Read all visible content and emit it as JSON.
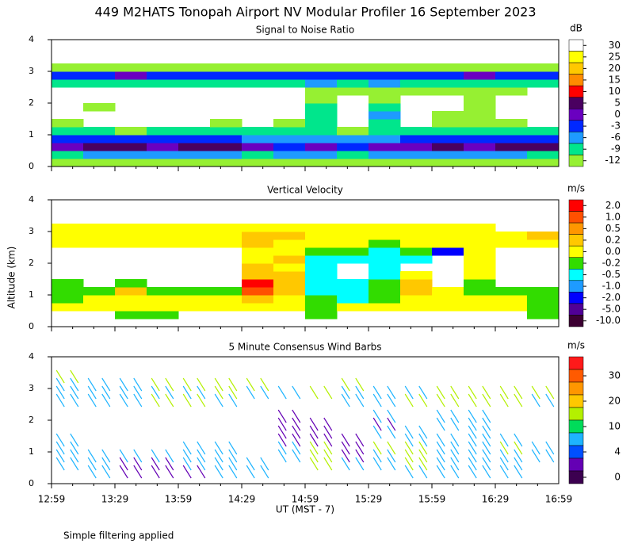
{
  "title": "449 M2HATS Tonopah Airport NV Modular Profiler 16 September 2023",
  "ylabel": "Altitude (km)",
  "xlabel": "UT  (MST - 7)",
  "footnote": "Simple filtering applied",
  "chart_data": [
    {
      "type": "heatmap",
      "title": "Signal to Noise Ratio",
      "unit": "dB",
      "xticks": [
        "12:59",
        "13:29",
        "13:59",
        "14:29",
        "14:59",
        "15:29",
        "15:59",
        "16:29",
        "16:59"
      ],
      "ylim": [
        0,
        4
      ],
      "yticks": [
        0,
        1,
        2,
        3,
        4
      ],
      "levels": [
        30,
        25,
        20,
        15,
        10,
        5,
        0,
        -3,
        -6,
        -9,
        -12
      ],
      "colors": [
        "#ffffff",
        "#ffff00",
        "#ffc800",
        "#ff8c00",
        "#ff0000",
        "#4a0060",
        "#6a00c0",
        "#0028ff",
        "#1e9bff",
        "#00e68c",
        "#96f032"
      ],
      "z": [
        [
          -12,
          -12,
          -12,
          -12,
          -12,
          -12,
          -12,
          -12,
          -12,
          -12,
          -12,
          -12,
          -12,
          -12,
          -12,
          -12
        ],
        [
          -9,
          -6,
          -6,
          -6,
          -6,
          -6,
          -9,
          -6,
          -6,
          -9,
          -6,
          -6,
          -6,
          -6,
          -6,
          -9
        ],
        [
          0,
          5,
          5,
          3,
          5,
          5,
          0,
          -3,
          0,
          -3,
          0,
          3,
          5,
          3,
          5,
          5
        ],
        [
          -3,
          -3,
          -3,
          -3,
          -3,
          -3,
          -6,
          -6,
          -6,
          -6,
          -6,
          -3,
          -3,
          -3,
          -3,
          -3
        ],
        [
          -9,
          -9,
          -12,
          -9,
          -9,
          -9,
          -9,
          -9,
          -9,
          -12,
          -9,
          -9,
          -9,
          -9,
          -9,
          -9
        ],
        [
          -12,
          null,
          null,
          null,
          null,
          -12,
          null,
          -12,
          -9,
          null,
          -9,
          null,
          -12,
          -12,
          -12,
          null
        ],
        [
          null,
          null,
          null,
          null,
          null,
          null,
          null,
          null,
          -9,
          null,
          -6,
          null,
          -12,
          -12,
          null,
          null
        ],
        [
          null,
          -12,
          null,
          null,
          null,
          null,
          null,
          null,
          -9,
          null,
          -9,
          null,
          null,
          -12,
          null,
          null
        ],
        [
          null,
          null,
          null,
          null,
          null,
          null,
          null,
          null,
          -12,
          null,
          -12,
          null,
          null,
          -12,
          null,
          null
        ],
        [
          null,
          null,
          null,
          null,
          null,
          null,
          null,
          null,
          -12,
          -12,
          -12,
          -12,
          -12,
          -12,
          -12,
          null
        ],
        [
          -9,
          -9,
          -9,
          -9,
          -9,
          -9,
          -9,
          -9,
          -6,
          -9,
          -6,
          -9,
          -9,
          -9,
          -9,
          -9
        ],
        [
          -3,
          -3,
          0,
          -3,
          -3,
          -3,
          -3,
          -3,
          -3,
          -3,
          -3,
          -3,
          -3,
          0,
          -3,
          -3
        ],
        [
          -12,
          -12,
          -12,
          -12,
          -12,
          -12,
          -12,
          -12,
          -12,
          -12,
          -12,
          -12,
          -12,
          -12,
          -12,
          -12
        ],
        [
          null,
          null,
          null,
          null,
          null,
          null,
          null,
          null,
          null,
          null,
          null,
          null,
          null,
          null,
          null,
          null
        ],
        [
          null,
          null,
          null,
          null,
          null,
          null,
          null,
          null,
          null,
          null,
          null,
          null,
          null,
          null,
          null,
          null
        ],
        [
          null,
          null,
          null,
          null,
          null,
          null,
          null,
          null,
          null,
          null,
          null,
          null,
          null,
          null,
          null,
          null
        ]
      ]
    },
    {
      "type": "heatmap",
      "title": "Vertical Velocity",
      "unit": "m/s",
      "xticks": [
        "12:59",
        "13:29",
        "13:59",
        "14:29",
        "14:59",
        "15:29",
        "15:59",
        "16:29",
        "16:59"
      ],
      "ylim": [
        0,
        4
      ],
      "yticks": [
        0,
        1,
        2,
        3,
        4
      ],
      "levels": [
        {
          "value": 2,
          "label": "2.0"
        },
        {
          "value": 1,
          "label": "1.0"
        },
        0.5,
        0.2,
        {
          "value": 0,
          "label": "0.0"
        },
        -0.2,
        -0.5,
        {
          "value": -1,
          "label": "-1.0"
        },
        {
          "value": -2,
          "label": "-2.0"
        },
        {
          "value": -5,
          "label": "-5.0"
        },
        {
          "value": -10,
          "label": "-10.0"
        }
      ],
      "colors": [
        "#ff0000",
        "#ff5000",
        "#ff9600",
        "#ffc800",
        "#ffff00",
        "#32dc00",
        "#00ffff",
        "#1e9bff",
        "#0000ff",
        "#500096",
        "#3c0032"
      ],
      "z": [
        [
          null,
          null,
          null,
          null,
          null,
          null,
          null,
          null,
          null,
          null,
          null,
          null,
          null,
          null,
          null,
          null
        ],
        [
          null,
          null,
          -0.1,
          -0.1,
          null,
          null,
          null,
          null,
          -0.1,
          null,
          null,
          null,
          null,
          null,
          null,
          -0.1
        ],
        [
          0.1,
          0.1,
          0.1,
          0.1,
          0.1,
          0.1,
          0.1,
          0.1,
          -0.1,
          0.1,
          0.1,
          0.1,
          0.1,
          0.1,
          0.1,
          -0.1
        ],
        [
          -0.1,
          0.1,
          0.1,
          0.1,
          0.1,
          0.1,
          0.3,
          0.1,
          -0.1,
          -0.3,
          -0.1,
          0.1,
          0.1,
          0.1,
          0.1,
          -0.1
        ],
        [
          -0.1,
          -0.1,
          0.3,
          -0.1,
          -0.1,
          -0.1,
          1.5,
          0.3,
          -0.3,
          -0.3,
          -0.1,
          0.3,
          0.1,
          -0.1,
          -0.1,
          -0.1
        ],
        [
          -0.1,
          null,
          -0.1,
          null,
          null,
          null,
          3,
          0.3,
          -0.3,
          -0.3,
          -0.1,
          0.3,
          null,
          -0.1,
          null,
          null
        ],
        [
          null,
          null,
          null,
          null,
          null,
          null,
          0.3,
          0.3,
          -0.3,
          null,
          -0.3,
          0.1,
          null,
          0.1,
          null,
          null
        ],
        [
          null,
          null,
          null,
          null,
          null,
          null,
          0.3,
          0.1,
          -0.3,
          null,
          -0.3,
          null,
          null,
          0.1,
          null,
          null
        ],
        [
          null,
          null,
          null,
          null,
          null,
          null,
          0.1,
          0.3,
          -0.3,
          -0.3,
          -0.3,
          -0.3,
          null,
          0.1,
          null,
          null
        ],
        [
          null,
          null,
          null,
          null,
          null,
          null,
          0.1,
          0.1,
          -0.1,
          -0.1,
          -0.3,
          -0.1,
          -1.5,
          0.1,
          null,
          null
        ],
        [
          0.1,
          0.1,
          0.1,
          0.1,
          0.1,
          0.1,
          0.3,
          0.1,
          0.1,
          0.1,
          -0.1,
          0.1,
          0.1,
          0.1,
          0.1,
          0.1
        ],
        [
          0.1,
          0.1,
          0.1,
          0.1,
          0.1,
          0.1,
          0.3,
          0.3,
          0.1,
          0.1,
          0.1,
          0.1,
          0.1,
          0.1,
          0.1,
          0.3
        ],
        [
          0.1,
          0.1,
          0.1,
          0.1,
          0.1,
          0.1,
          0.1,
          0.1,
          0.1,
          0.1,
          0.1,
          0.1,
          0.1,
          0.1,
          null,
          null
        ],
        [
          null,
          null,
          null,
          null,
          null,
          null,
          null,
          null,
          null,
          null,
          null,
          null,
          null,
          null,
          null,
          null
        ],
        [
          null,
          null,
          null,
          null,
          null,
          null,
          null,
          null,
          null,
          null,
          null,
          null,
          null,
          null,
          null,
          null
        ],
        [
          null,
          null,
          null,
          null,
          null,
          null,
          null,
          null,
          null,
          null,
          null,
          null,
          null,
          null,
          null,
          null
        ]
      ]
    },
    {
      "type": "barbs",
      "title": "5 Minute Consensus Wind Barbs",
      "unit": "m/s",
      "xticks": [
        "12:59",
        "13:29",
        "13:59",
        "14:29",
        "14:59",
        "15:29",
        "15:59",
        "16:29",
        "16:59"
      ],
      "ylim": [
        0,
        4
      ],
      "yticks": [
        0,
        1,
        2,
        3,
        4
      ],
      "levels": [
        30,
        20,
        10,
        4,
        0
      ],
      "colors": [
        "#ff1a1a",
        "#ff5a00",
        "#ff9600",
        "#ffc800",
        "#b4f000",
        "#00dc5a",
        "#1eb4ff",
        "#0050ff",
        "#6400b4",
        "#3c0050"
      ],
      "z": [
        [
          null,
          null,
          null,
          null,
          null,
          null,
          null,
          null,
          null,
          null,
          null,
          null,
          null,
          null,
          null,
          null
        ],
        [
          null,
          6,
          3,
          3,
          3,
          6,
          6,
          null,
          null,
          null,
          null,
          6,
          6,
          6,
          6,
          null
        ],
        [
          6,
          6,
          3,
          3,
          6,
          6,
          6,
          null,
          11,
          6,
          6,
          11,
          6,
          6,
          6,
          null
        ],
        [
          6,
          6,
          6,
          6,
          6,
          6,
          null,
          6,
          11,
          3,
          6,
          11,
          6,
          6,
          6,
          6
        ],
        [
          6,
          null,
          null,
          null,
          6,
          6,
          null,
          6,
          11,
          3,
          11,
          11,
          6,
          6,
          11,
          6
        ],
        [
          6,
          null,
          null,
          null,
          null,
          null,
          null,
          3,
          3,
          3,
          null,
          6,
          6,
          6,
          6,
          null
        ],
        [
          null,
          null,
          null,
          null,
          null,
          null,
          null,
          3,
          3,
          null,
          6,
          6,
          null,
          6,
          null,
          null
        ],
        [
          null,
          null,
          null,
          null,
          null,
          null,
          null,
          3,
          3,
          null,
          3,
          null,
          6,
          6,
          null,
          null
        ],
        [
          null,
          null,
          null,
          null,
          null,
          null,
          null,
          3,
          null,
          null,
          6,
          null,
          6,
          6,
          null,
          null
        ],
        [
          null,
          null,
          null,
          null,
          null,
          null,
          null,
          null,
          null,
          null,
          null,
          null,
          null,
          null,
          null,
          null
        ],
        [
          6,
          6,
          6,
          11,
          11,
          6,
          null,
          null,
          null,
          6,
          6,
          11,
          11,
          11,
          11,
          6
        ],
        [
          6,
          6,
          6,
          6,
          6,
          11,
          6,
          6,
          11,
          6,
          6,
          6,
          11,
          11,
          11,
          11
        ],
        [
          6,
          6,
          6,
          11,
          11,
          11,
          11,
          null,
          null,
          11,
          null,
          null,
          null,
          null,
          null,
          null
        ],
        [
          11,
          null,
          null,
          null,
          null,
          null,
          null,
          null,
          null,
          null,
          null,
          null,
          null,
          null,
          null,
          null
        ],
        [
          null,
          null,
          null,
          null,
          null,
          null,
          null,
          null,
          null,
          null,
          null,
          null,
          null,
          null,
          null,
          null
        ],
        [
          null,
          null,
          null,
          null,
          null,
          null,
          null,
          null,
          null,
          null,
          null,
          null,
          null,
          null,
          null,
          null
        ]
      ]
    }
  ]
}
